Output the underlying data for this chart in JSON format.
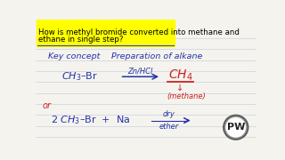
{
  "bg_color": "#f5f3ee",
  "title_text_line1": "How is methyl bromide converted into methane and",
  "title_text_line2": "ethane in single step?",
  "title_bg": "#ffff00",
  "title_underline_color": "#3344cc",
  "key_concept": "Key concept",
  "preparation": "Preparation of alkane",
  "blue": "#2233aa",
  "red": "#cc2222",
  "line_color": "#c8cdd8",
  "rxn1_reagent": "Zn/HCl",
  "rxn1_product": "CH",
  "rxn1_sub": "4",
  "rxn1_product3": "(methane)",
  "rxn2_label": "or",
  "rxn2_reagent_top": "dry",
  "rxn2_reagent_bot": "ether",
  "pw_bg": "#666666",
  "pw_fg": "#ffffff"
}
